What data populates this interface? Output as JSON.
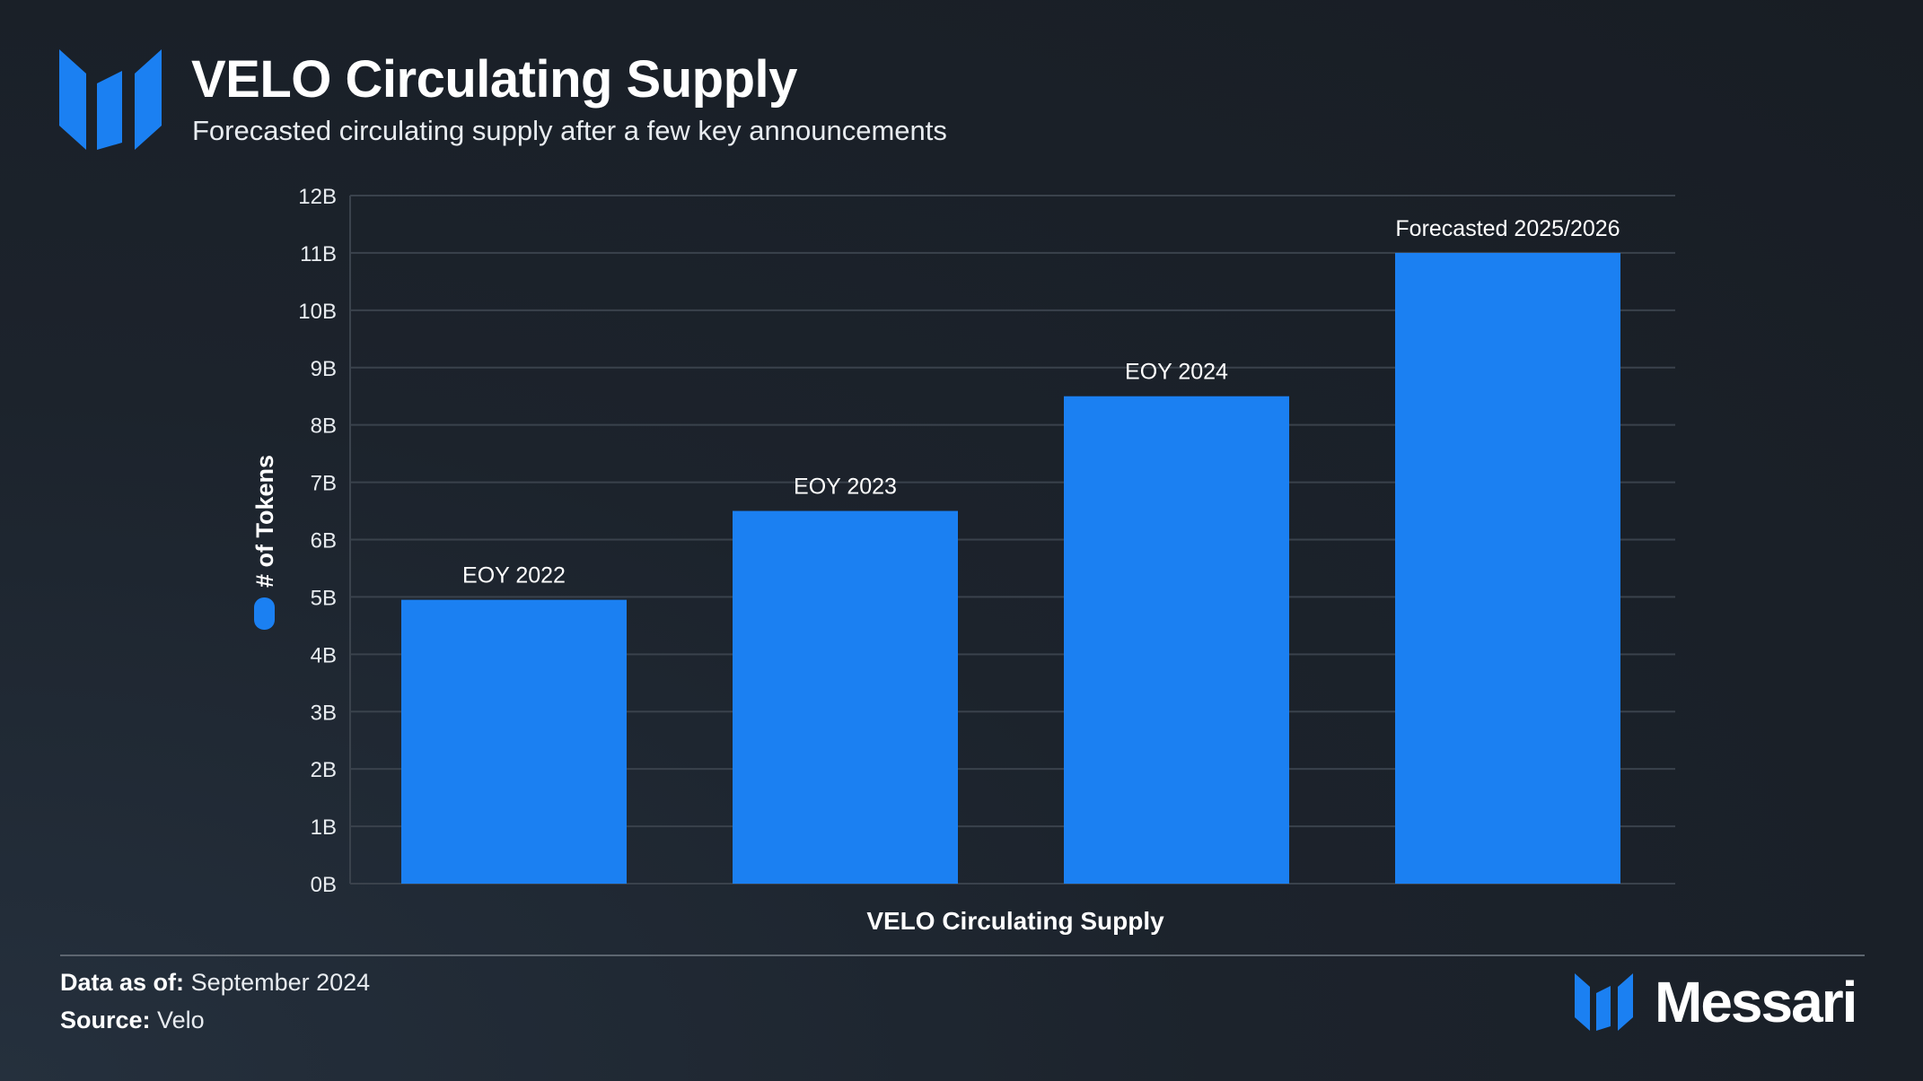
{
  "header": {
    "title": "VELO Circulating Supply",
    "subtitle": "Forecasted circulating supply after a few key announcements"
  },
  "footer": {
    "date_label": "Data as of:",
    "date_value": "September 2024",
    "source_label": "Source:",
    "source_value": "Velo",
    "brand": "Messari"
  },
  "colors": {
    "bar": "#1b80f2",
    "grid": "#3a424c",
    "axis_text": "#e8ecf0",
    "accent": "#1b80f2"
  },
  "chart_data": {
    "type": "bar",
    "title": "VELO Circulating Supply",
    "xlabel": "VELO Circulating Supply",
    "ylabel": "# of Tokens",
    "ylim": [
      0,
      12
    ],
    "yunit": "B",
    "yticks": [
      "0B",
      "1B",
      "2B",
      "3B",
      "4B",
      "5B",
      "6B",
      "7B",
      "8B",
      "9B",
      "10B",
      "11B",
      "12B"
    ],
    "grid": true,
    "legend": "left",
    "series": [
      {
        "name": "# of Tokens",
        "values": [
          4.95,
          6.5,
          8.5,
          11.0
        ]
      }
    ],
    "categories": [
      "EOY 2022",
      "EOY 2023",
      "EOY 2024",
      "Forecasted 2025/2026"
    ],
    "data_labels": [
      "EOY 2022",
      "EOY 2023",
      "EOY 2024",
      "Forecasted 2025/2026"
    ]
  }
}
